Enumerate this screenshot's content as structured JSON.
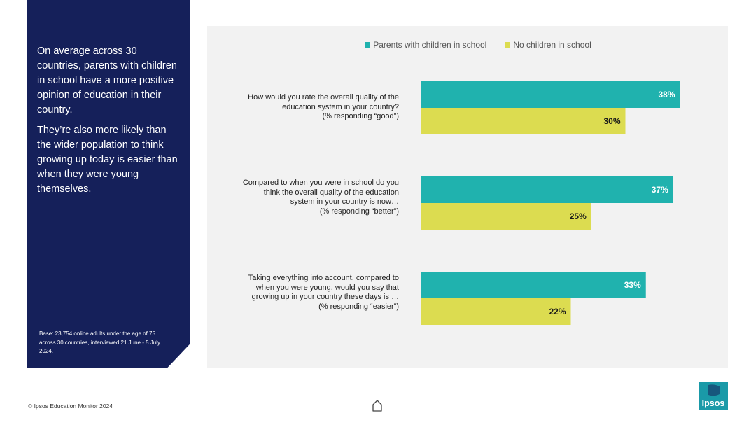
{
  "side_panel": {
    "paragraph1": "On average across 30 countries, parents with children in school have a more positive opinion of education in their country.",
    "paragraph2": "They’re also more likely than the wider population to think growing up today is easier than when they were young themselves.",
    "base_note": "Base: 23,754 online adults under the age of 75 across 30 countries, interviewed 21 June - 5 July 2024."
  },
  "footer": {
    "copyright": "© Ipsos Education Monitor 2024",
    "logo_text": "Ipsos"
  },
  "colors": {
    "teal": "#20b2ae",
    "yellow": "#dcdc50",
    "navy": "#15205a",
    "logo": "#1a9aa8"
  },
  "icons": {
    "home": "home-icon",
    "logo": "ipsos-logo"
  },
  "chart_data": {
    "type": "bar",
    "orientation": "horizontal",
    "legend": "top-center",
    "xlim": [
      0,
      50
    ],
    "grid": false,
    "categories": [
      [
        "How would you rate the overall quality of the",
        "education system in your country?",
        "(% responding “good”)"
      ],
      [
        "Compared to when you were in school do you",
        "think the overall quality of the education",
        "system in your country is now…",
        "(% responding “better”)"
      ],
      [
        "Taking everything into account, compared to",
        "when you were young, would you say that",
        "growing up in your  country these days is …",
        "(% responding “easier”)"
      ]
    ],
    "series": [
      {
        "name": "Parents with children in school",
        "values": [
          38,
          37,
          33
        ],
        "labels": [
          "38%",
          "37%",
          "33%"
        ]
      },
      {
        "name": "No children in school",
        "values": [
          30,
          25,
          22
        ],
        "labels": [
          "30%",
          "25%",
          "22%"
        ]
      }
    ]
  }
}
